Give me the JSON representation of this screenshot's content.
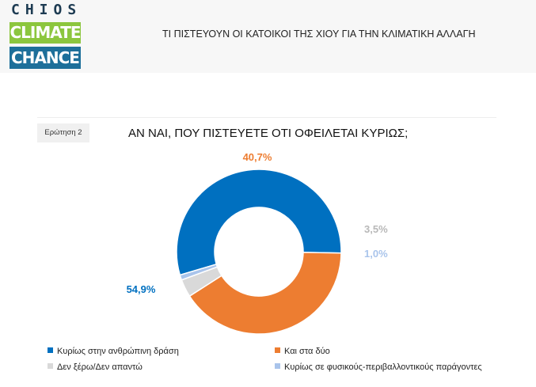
{
  "header": {
    "logo": {
      "line1": "CHIOS",
      "line2": "CLIMATE",
      "line3": "CHANCE"
    },
    "title": "ΤΙ ΠΙΣΤΕΥΟΥΝ ΟΙ ΚΑΤΟΙΚΟΙ ΤΗΣ ΧΙΟΥ ΓΙΑ ΤΗΝ ΚΛΙΜΑΤΙΚΗ ΑΛΛΑΓΗ"
  },
  "question_tag": "Ερώτηση 2",
  "chart_data": {
    "type": "pie",
    "style": "donut",
    "title": "ΑΝ ΝΑΙ, ΠΟΥ ΠΙΣΤΕΥΕΤΕ ΟΤΙ ΟΦΕΙΛΕΤΑΙ ΚΥΡΙΩΣ;",
    "legend_position": "bottom",
    "slices": [
      {
        "name": "Κυρίως στην ανθρώπινη δράση",
        "value": 54.9,
        "label": "54,9%",
        "color": "#0070c0"
      },
      {
        "name": "Και στα δύο",
        "value": 40.7,
        "label": "40,7%",
        "color": "#ed7d31"
      },
      {
        "name": "Δεν ξέρω/Δεν απαντώ",
        "value": 3.5,
        "label": "3,5%",
        "color": "#d9d9d9"
      },
      {
        "name": "Κυρίως σε φυσικούς-περιβαλλοντικούς παράγοντες",
        "value": 1.0,
        "label": "1,0%",
        "color": "#a9c4eb"
      }
    ]
  }
}
